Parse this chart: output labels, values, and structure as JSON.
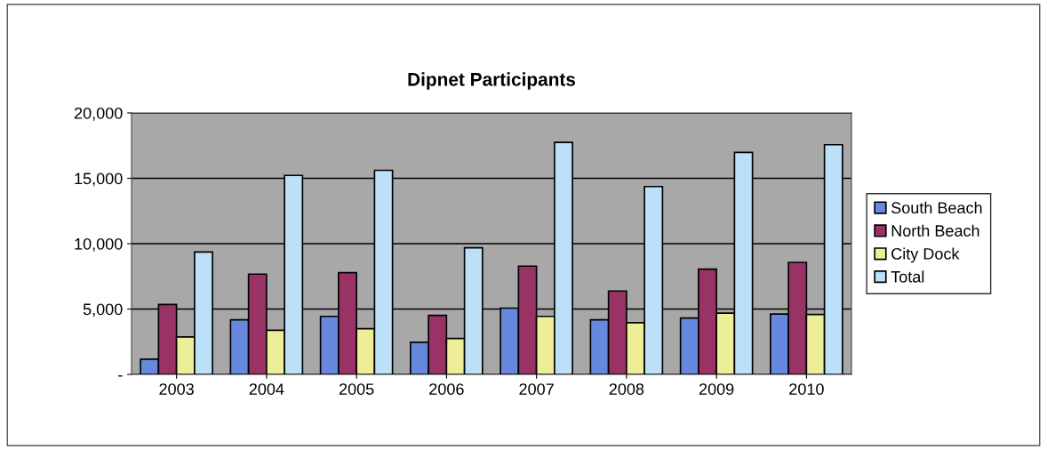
{
  "chart_data": {
    "type": "bar",
    "title": "Dipnet Participants",
    "categories": [
      "2003",
      "2004",
      "2005",
      "2006",
      "2007",
      "2008",
      "2009",
      "2010"
    ],
    "series": [
      {
        "name": "South Beach",
        "color": "#6688dd",
        "values": [
          1170,
          4170,
          4440,
          2460,
          5070,
          4170,
          4310,
          4620
        ]
      },
      {
        "name": "North Beach",
        "color": "#993366",
        "values": [
          5350,
          7670,
          7780,
          4510,
          8280,
          6380,
          8050,
          8570
        ]
      },
      {
        "name": "City Dock",
        "color": "#eeee99",
        "values": [
          2870,
          3380,
          3500,
          2750,
          4440,
          3950,
          4690,
          4580
        ]
      },
      {
        "name": "Total",
        "color": "#bbe0f8",
        "values": [
          9360,
          15220,
          15610,
          9680,
          17750,
          14370,
          16980,
          17570
        ]
      }
    ],
    "ylim": [
      0,
      20000
    ],
    "yticks": [
      {
        "value": 0,
        "label": "-"
      },
      {
        "value": 5000,
        "label": "5,000"
      },
      {
        "value": 10000,
        "label": "10,000"
      },
      {
        "value": 15000,
        "label": "15,000"
      },
      {
        "value": 20000,
        "label": "20,000"
      }
    ],
    "grid": "y",
    "legend": "right"
  }
}
